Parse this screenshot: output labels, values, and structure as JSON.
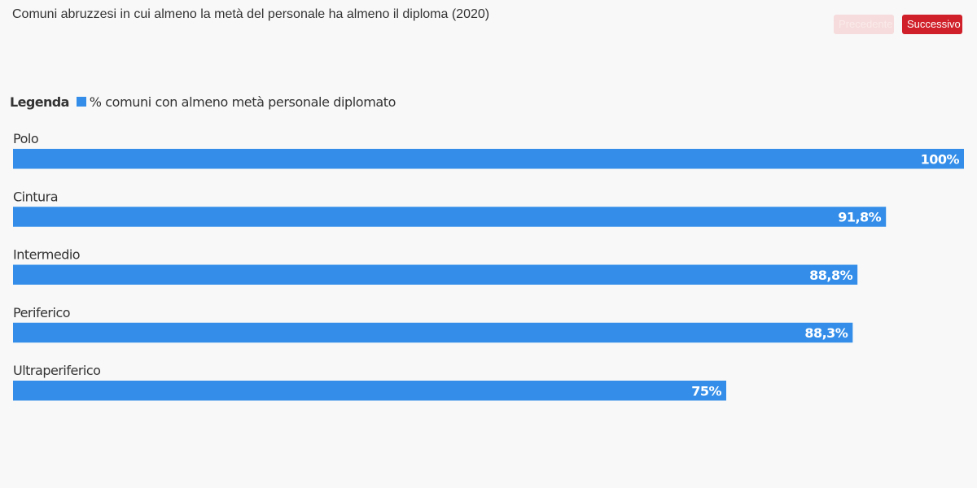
{
  "title": "Comuni abruzzesi in cui almeno la metà del personale ha almeno il diploma (2020)",
  "buttons": {
    "prev_label": "Precedente",
    "next_label": "Successivo"
  },
  "legend": {
    "title": "Legenda",
    "items": [
      {
        "label": "% comuni con almeno metà personale diplomato",
        "color": "#348ee9"
      }
    ]
  },
  "chart_data": {
    "type": "bar",
    "orientation": "horizontal",
    "categories": [
      "Polo",
      "Cintura",
      "Intermedio",
      "Periferico",
      "Ultraperiferico"
    ],
    "series": [
      {
        "name": "% comuni con almeno metà personale diplomato",
        "values": [
          100,
          91.8,
          88.8,
          88.3,
          75
        ],
        "value_labels": [
          "100%",
          "91,8%",
          "88,8%",
          "88,3%",
          "75%"
        ],
        "color": "#348ee9"
      }
    ],
    "xlim": [
      0,
      100
    ],
    "grid": false,
    "legend_position": "top-left"
  }
}
